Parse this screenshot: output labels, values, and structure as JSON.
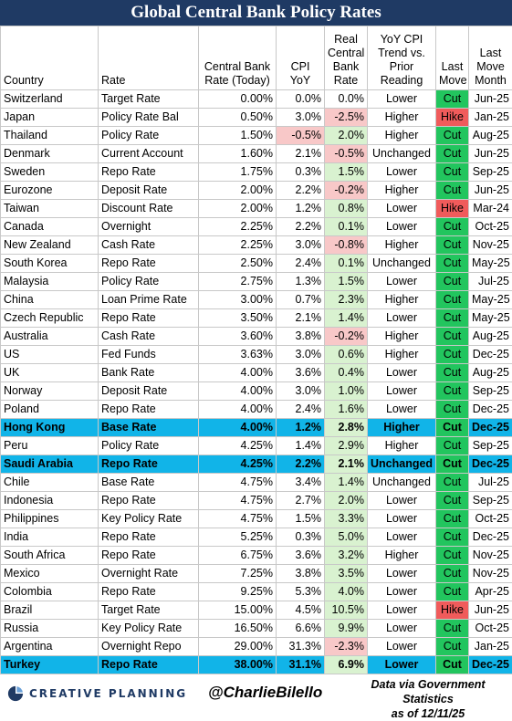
{
  "title": "Global Central Bank Policy Rates",
  "colors": {
    "header_bg": "#1f3a64",
    "highlight_row": "#11b4e8",
    "cut": "#22c55e",
    "hike": "#f05b5b",
    "positive_real": "#d9f2d0",
    "negative_real": "#f8c8c8"
  },
  "headers": {
    "country": "Country",
    "rate": "Rate",
    "central_bank_rate": "Central Bank Rate (Today)",
    "cpi": "CPI YoY",
    "real_rate": "Real Central Bank Rate",
    "trend": "YoY CPI Trend vs. Prior Reading",
    "last_move": "Last Move",
    "last_move_month": "Last Move Month"
  },
  "rows": [
    {
      "country": "Switzerland",
      "rate": "Target Rate",
      "cb_rate": "0.00%",
      "cpi": "0.0%",
      "cpi_neg": false,
      "real": "0.0%",
      "real_sign": "zero",
      "trend": "Lower",
      "move": "Cut",
      "month": "Jun-25",
      "highlight": false
    },
    {
      "country": "Japan",
      "rate": "Policy Rate Bal",
      "cb_rate": "0.50%",
      "cpi": "3.0%",
      "cpi_neg": false,
      "real": "-2.5%",
      "real_sign": "neg",
      "trend": "Higher",
      "move": "Hike",
      "month": "Jan-25",
      "highlight": false
    },
    {
      "country": "Thailand",
      "rate": "Policy Rate",
      "cb_rate": "1.50%",
      "cpi": "-0.5%",
      "cpi_neg": true,
      "real": "2.0%",
      "real_sign": "pos",
      "trend": "Higher",
      "move": "Cut",
      "month": "Aug-25",
      "highlight": false
    },
    {
      "country": "Denmark",
      "rate": "Current Account",
      "cb_rate": "1.60%",
      "cpi": "2.1%",
      "cpi_neg": false,
      "real": "-0.5%",
      "real_sign": "neg",
      "trend": "Unchanged",
      "move": "Cut",
      "month": "Jun-25",
      "highlight": false
    },
    {
      "country": "Sweden",
      "rate": "Repo Rate",
      "cb_rate": "1.75%",
      "cpi": "0.3%",
      "cpi_neg": false,
      "real": "1.5%",
      "real_sign": "pos",
      "trend": "Lower",
      "move": "Cut",
      "month": "Sep-25",
      "highlight": false
    },
    {
      "country": "Eurozone",
      "rate": "Deposit Rate",
      "cb_rate": "2.00%",
      "cpi": "2.2%",
      "cpi_neg": false,
      "real": "-0.2%",
      "real_sign": "neg",
      "trend": "Higher",
      "move": "Cut",
      "month": "Jun-25",
      "highlight": false
    },
    {
      "country": "Taiwan",
      "rate": "Discount Rate",
      "cb_rate": "2.00%",
      "cpi": "1.2%",
      "cpi_neg": false,
      "real": "0.8%",
      "real_sign": "pos",
      "trend": "Lower",
      "move": "Hike",
      "month": "Mar-24",
      "highlight": false
    },
    {
      "country": "Canada",
      "rate": "Overnight",
      "cb_rate": "2.25%",
      "cpi": "2.2%",
      "cpi_neg": false,
      "real": "0.1%",
      "real_sign": "pos",
      "trend": "Lower",
      "move": "Cut",
      "month": "Oct-25",
      "highlight": false
    },
    {
      "country": "New Zealand",
      "rate": "Cash Rate",
      "cb_rate": "2.25%",
      "cpi": "3.0%",
      "cpi_neg": false,
      "real": "-0.8%",
      "real_sign": "neg",
      "trend": "Higher",
      "move": "Cut",
      "month": "Nov-25",
      "highlight": false
    },
    {
      "country": "South Korea",
      "rate": "Repo Rate",
      "cb_rate": "2.50%",
      "cpi": "2.4%",
      "cpi_neg": false,
      "real": "0.1%",
      "real_sign": "pos",
      "trend": "Unchanged",
      "move": "Cut",
      "month": "May-25",
      "highlight": false
    },
    {
      "country": "Malaysia",
      "rate": "Policy Rate",
      "cb_rate": "2.75%",
      "cpi": "1.3%",
      "cpi_neg": false,
      "real": "1.5%",
      "real_sign": "pos",
      "trend": "Lower",
      "move": "Cut",
      "month": "Jul-25",
      "highlight": false
    },
    {
      "country": "China",
      "rate": "Loan Prime Rate",
      "cb_rate": "3.00%",
      "cpi": "0.7%",
      "cpi_neg": false,
      "real": "2.3%",
      "real_sign": "pos",
      "trend": "Higher",
      "move": "Cut",
      "month": "May-25",
      "highlight": false
    },
    {
      "country": "Czech Republic",
      "rate": "Repo Rate",
      "cb_rate": "3.50%",
      "cpi": "2.1%",
      "cpi_neg": false,
      "real": "1.4%",
      "real_sign": "pos",
      "trend": "Lower",
      "move": "Cut",
      "month": "May-25",
      "highlight": false
    },
    {
      "country": "Australia",
      "rate": "Cash Rate",
      "cb_rate": "3.60%",
      "cpi": "3.8%",
      "cpi_neg": false,
      "real": "-0.2%",
      "real_sign": "neg",
      "trend": "Higher",
      "move": "Cut",
      "month": "Aug-25",
      "highlight": false
    },
    {
      "country": "US",
      "rate": "Fed Funds",
      "cb_rate": "3.63%",
      "cpi": "3.0%",
      "cpi_neg": false,
      "real": "0.6%",
      "real_sign": "pos",
      "trend": "Higher",
      "move": "Cut",
      "month": "Dec-25",
      "highlight": false
    },
    {
      "country": "UK",
      "rate": "Bank Rate",
      "cb_rate": "4.00%",
      "cpi": "3.6%",
      "cpi_neg": false,
      "real": "0.4%",
      "real_sign": "pos",
      "trend": "Lower",
      "move": "Cut",
      "month": "Aug-25",
      "highlight": false
    },
    {
      "country": "Norway",
      "rate": "Deposit Rate",
      "cb_rate": "4.00%",
      "cpi": "3.0%",
      "cpi_neg": false,
      "real": "1.0%",
      "real_sign": "pos",
      "trend": "Lower",
      "move": "Cut",
      "month": "Sep-25",
      "highlight": false
    },
    {
      "country": "Poland",
      "rate": "Repo Rate",
      "cb_rate": "4.00%",
      "cpi": "2.4%",
      "cpi_neg": false,
      "real": "1.6%",
      "real_sign": "pos",
      "trend": "Lower",
      "move": "Cut",
      "month": "Dec-25",
      "highlight": false
    },
    {
      "country": "Hong Kong",
      "rate": "Base Rate",
      "cb_rate": "4.00%",
      "cpi": "1.2%",
      "cpi_neg": false,
      "real": "2.8%",
      "real_sign": "pos",
      "trend": "Higher",
      "move": "Cut",
      "month": "Dec-25",
      "highlight": true
    },
    {
      "country": "Peru",
      "rate": "Policy Rate",
      "cb_rate": "4.25%",
      "cpi": "1.4%",
      "cpi_neg": false,
      "real": "2.9%",
      "real_sign": "pos",
      "trend": "Higher",
      "move": "Cut",
      "month": "Sep-25",
      "highlight": false
    },
    {
      "country": "Saudi Arabia",
      "rate": "Repo Rate",
      "cb_rate": "4.25%",
      "cpi": "2.2%",
      "cpi_neg": false,
      "real": "2.1%",
      "real_sign": "pos",
      "trend": "Unchanged",
      "move": "Cut",
      "month": "Dec-25",
      "highlight": true
    },
    {
      "country": "Chile",
      "rate": "Base Rate",
      "cb_rate": "4.75%",
      "cpi": "3.4%",
      "cpi_neg": false,
      "real": "1.4%",
      "real_sign": "pos",
      "trend": "Unchanged",
      "move": "Cut",
      "month": "Jul-25",
      "highlight": false
    },
    {
      "country": "Indonesia",
      "rate": "Repo Rate",
      "cb_rate": "4.75%",
      "cpi": "2.7%",
      "cpi_neg": false,
      "real": "2.0%",
      "real_sign": "pos",
      "trend": "Lower",
      "move": "Cut",
      "month": "Sep-25",
      "highlight": false
    },
    {
      "country": "Philippines",
      "rate": "Key Policy Rate",
      "cb_rate": "4.75%",
      "cpi": "1.5%",
      "cpi_neg": false,
      "real": "3.3%",
      "real_sign": "pos",
      "trend": "Lower",
      "move": "Cut",
      "month": "Oct-25",
      "highlight": false
    },
    {
      "country": "India",
      "rate": "Repo Rate",
      "cb_rate": "5.25%",
      "cpi": "0.3%",
      "cpi_neg": false,
      "real": "5.0%",
      "real_sign": "pos",
      "trend": "Lower",
      "move": "Cut",
      "month": "Dec-25",
      "highlight": false
    },
    {
      "country": "South Africa",
      "rate": "Repo Rate",
      "cb_rate": "6.75%",
      "cpi": "3.6%",
      "cpi_neg": false,
      "real": "3.2%",
      "real_sign": "pos",
      "trend": "Higher",
      "move": "Cut",
      "month": "Nov-25",
      "highlight": false
    },
    {
      "country": "Mexico",
      "rate": "Overnight Rate",
      "cb_rate": "7.25%",
      "cpi": "3.8%",
      "cpi_neg": false,
      "real": "3.5%",
      "real_sign": "pos",
      "trend": "Lower",
      "move": "Cut",
      "month": "Nov-25",
      "highlight": false
    },
    {
      "country": "Colombia",
      "rate": "Repo Rate",
      "cb_rate": "9.25%",
      "cpi": "5.3%",
      "cpi_neg": false,
      "real": "4.0%",
      "real_sign": "pos",
      "trend": "Lower",
      "move": "Cut",
      "month": "Apr-25",
      "highlight": false
    },
    {
      "country": "Brazil",
      "rate": "Target Rate",
      "cb_rate": "15.00%",
      "cpi": "4.5%",
      "cpi_neg": false,
      "real": "10.5%",
      "real_sign": "pos",
      "trend": "Lower",
      "move": "Hike",
      "month": "Jun-25",
      "highlight": false
    },
    {
      "country": "Russia",
      "rate": "Key Policy Rate",
      "cb_rate": "16.50%",
      "cpi": "6.6%",
      "cpi_neg": false,
      "real": "9.9%",
      "real_sign": "pos",
      "trend": "Lower",
      "move": "Cut",
      "month": "Oct-25",
      "highlight": false
    },
    {
      "country": "Argentina",
      "rate": "Overnight Repo",
      "cb_rate": "29.00%",
      "cpi": "31.3%",
      "cpi_neg": false,
      "real": "-2.3%",
      "real_sign": "neg",
      "trend": "Lower",
      "move": "Cut",
      "month": "Jan-25",
      "highlight": false
    },
    {
      "country": "Turkey",
      "rate": "Repo Rate",
      "cb_rate": "38.00%",
      "cpi": "31.1%",
      "cpi_neg": false,
      "real": "6.9%",
      "real_sign": "pos",
      "trend": "Lower",
      "move": "Cut",
      "month": "Dec-25",
      "highlight": true
    }
  ],
  "footer": {
    "brand": "CREATIVE PLANNING",
    "handle": "@CharlieBilello",
    "source_line1": "Data via Government Statistics",
    "source_line2": "as of 12/11/25"
  }
}
